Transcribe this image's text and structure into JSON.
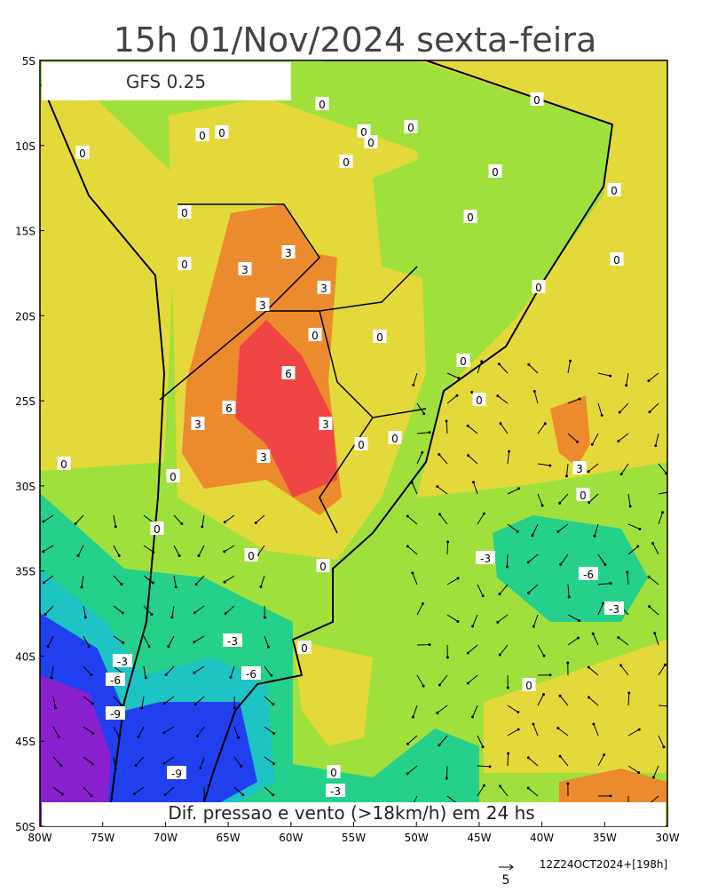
{
  "title": "15h 01/Nov/2024 sexta-feira",
  "model_label": "GFS 0.25",
  "caption": "Dif. pressao e vento (>18km/h) em 24 hs",
  "run_info": "12Z24OCT2024+[198h]",
  "scale_arrow_label": "5",
  "lat_labels": [
    "5S",
    "10S",
    "15S",
    "20S",
    "25S",
    "30S",
    "35S",
    "40S",
    "45S",
    "50S"
  ],
  "lon_labels": [
    "80W",
    "75W",
    "70W",
    "65W",
    "60W",
    "55W",
    "50W",
    "45W",
    "40W",
    "35W",
    "30W"
  ],
  "contour_labels": [
    "0",
    "0",
    "0",
    "0",
    "0",
    "0",
    "0",
    "0",
    "0",
    "0",
    "0",
    "0",
    "0",
    "0",
    "0",
    "3",
    "3",
    "3",
    "3",
    "0",
    "0",
    "0",
    "6",
    "6",
    "0",
    "0",
    "3",
    "3",
    "0",
    "0",
    "3",
    "0",
    "0",
    "3",
    "0",
    "0",
    "0",
    "0",
    "-3",
    "-6",
    "-3",
    "-3",
    "0",
    "-3",
    "-6",
    "-6",
    "0",
    "-9",
    "-9",
    "0",
    "-3"
  ]
}
